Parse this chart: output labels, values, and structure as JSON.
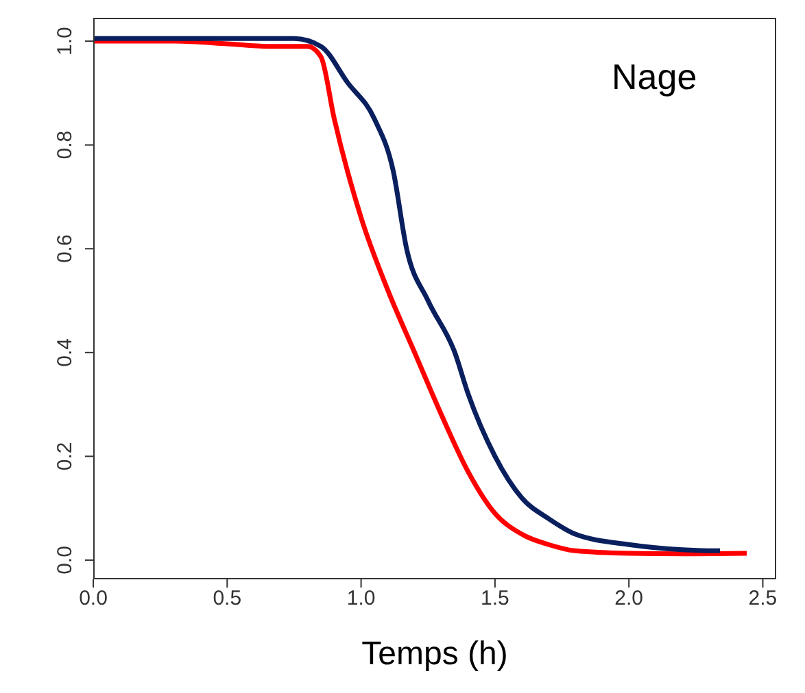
{
  "chart_data": {
    "type": "line",
    "xlabel": "Temps (h)",
    "annotations": [
      "Nage"
    ],
    "xlim": [
      0,
      2.55
    ],
    "ylim": [
      -0.037,
      1.045
    ],
    "xticks": [
      {
        "value": 0,
        "label": "0.0"
      },
      0.5,
      {
        "value": 1,
        "label": "1.0"
      },
      1.5,
      {
        "value": 2,
        "label": "2.0"
      },
      2.5
    ],
    "yticks": [
      {
        "value": 0,
        "label": "0.0"
      },
      0.2,
      0.4,
      0.6,
      0.8,
      {
        "value": 1,
        "label": "1.0"
      }
    ],
    "marker": "none",
    "line_style": "solid",
    "series": [
      {
        "color": "#ff0000",
        "x": [
          0,
          0.3,
          0.5,
          0.65,
          0.8,
          0.85,
          0.9,
          1.0,
          1.1,
          1.2,
          1.3,
          1.4,
          1.5,
          1.6,
          1.7,
          1.8,
          2.0,
          2.2,
          2.44
        ],
        "values": [
          1.0,
          1.0,
          0.995,
          0.99,
          0.99,
          0.97,
          0.85,
          0.66,
          0.52,
          0.4,
          0.28,
          0.17,
          0.09,
          0.05,
          0.03,
          0.018,
          0.013,
          0.012,
          0.013
        ]
      },
      {
        "color": "#0a1f5e",
        "x": [
          0,
          0.5,
          0.75,
          0.85,
          0.95,
          1.05,
          1.12,
          1.17,
          1.25,
          1.35,
          1.4,
          1.5,
          1.6,
          1.7,
          1.8,
          2.0,
          2.2,
          2.34
        ],
        "values": [
          1.005,
          1.005,
          1.005,
          0.99,
          0.92,
          0.85,
          0.75,
          0.6,
          0.5,
          0.4,
          0.32,
          0.2,
          0.12,
          0.08,
          0.05,
          0.03,
          0.02,
          0.018
        ]
      }
    ]
  }
}
